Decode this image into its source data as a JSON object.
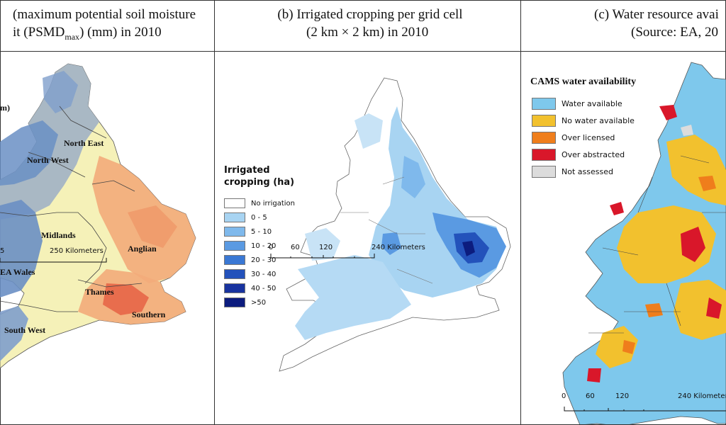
{
  "panels": {
    "a": {
      "title_line1": "(maximum potential soil moisture",
      "title_line2_pre": "it (PSMD",
      "title_line2_sub": "max",
      "title_line2_post": ") (mm) in 2010",
      "legend_fragment": "m)",
      "regions": [
        "North East",
        "North West",
        "Midlands",
        "Anglian",
        "EA Wales",
        "Thames",
        "Southern",
        "South West"
      ],
      "scale_labels": [
        "5",
        "250 Kilometers"
      ],
      "colors": {
        "blue": "#6a8fc4",
        "grey": "#a9b8c4",
        "yellow": "#f5f1b8",
        "orange": "#f3ab7a",
        "red": "#e7694a"
      }
    },
    "b": {
      "title_line1": "(b)  Irrigated cropping per grid cell",
      "title_line2": "(2 km × 2 km) in 2010",
      "legend_title": "Irrigated cropping (ha)",
      "legend_items": [
        {
          "label": "No irrigation",
          "color": "#ffffff"
        },
        {
          "label": "0 - 5",
          "color": "#a8d4f2"
        },
        {
          "label": "5 - 10",
          "color": "#7fb9ec"
        },
        {
          "label": "10 - 20",
          "color": "#5a9ae2"
        },
        {
          "label": "20 - 30",
          "color": "#3a78d4"
        },
        {
          "label": "30 - 40",
          "color": "#2352bb"
        },
        {
          "label": "40 - 50",
          "color": "#18339f"
        },
        {
          "label": ">50",
          "color": "#0c1c7e"
        }
      ],
      "scale_labels": [
        "0",
        "60",
        "120",
        "240 Kilometers"
      ]
    },
    "c": {
      "title_line1": "(c)  Water resource avai",
      "title_line2": "(Source: EA, 20",
      "legend_title": "CAMS water availability",
      "legend_items": [
        {
          "label": "Water available",
          "color": "#7ec8ec"
        },
        {
          "label": "No water available",
          "color": "#f2c12e"
        },
        {
          "label": "Over licensed",
          "color": "#ef7e1c"
        },
        {
          "label": "Over abstracted",
          "color": "#d9172a"
        },
        {
          "label": "Not assessed",
          "color": "#dcdcdc"
        }
      ],
      "scale_labels": [
        "0",
        "60",
        "120",
        "240 Kilometer"
      ]
    }
  }
}
